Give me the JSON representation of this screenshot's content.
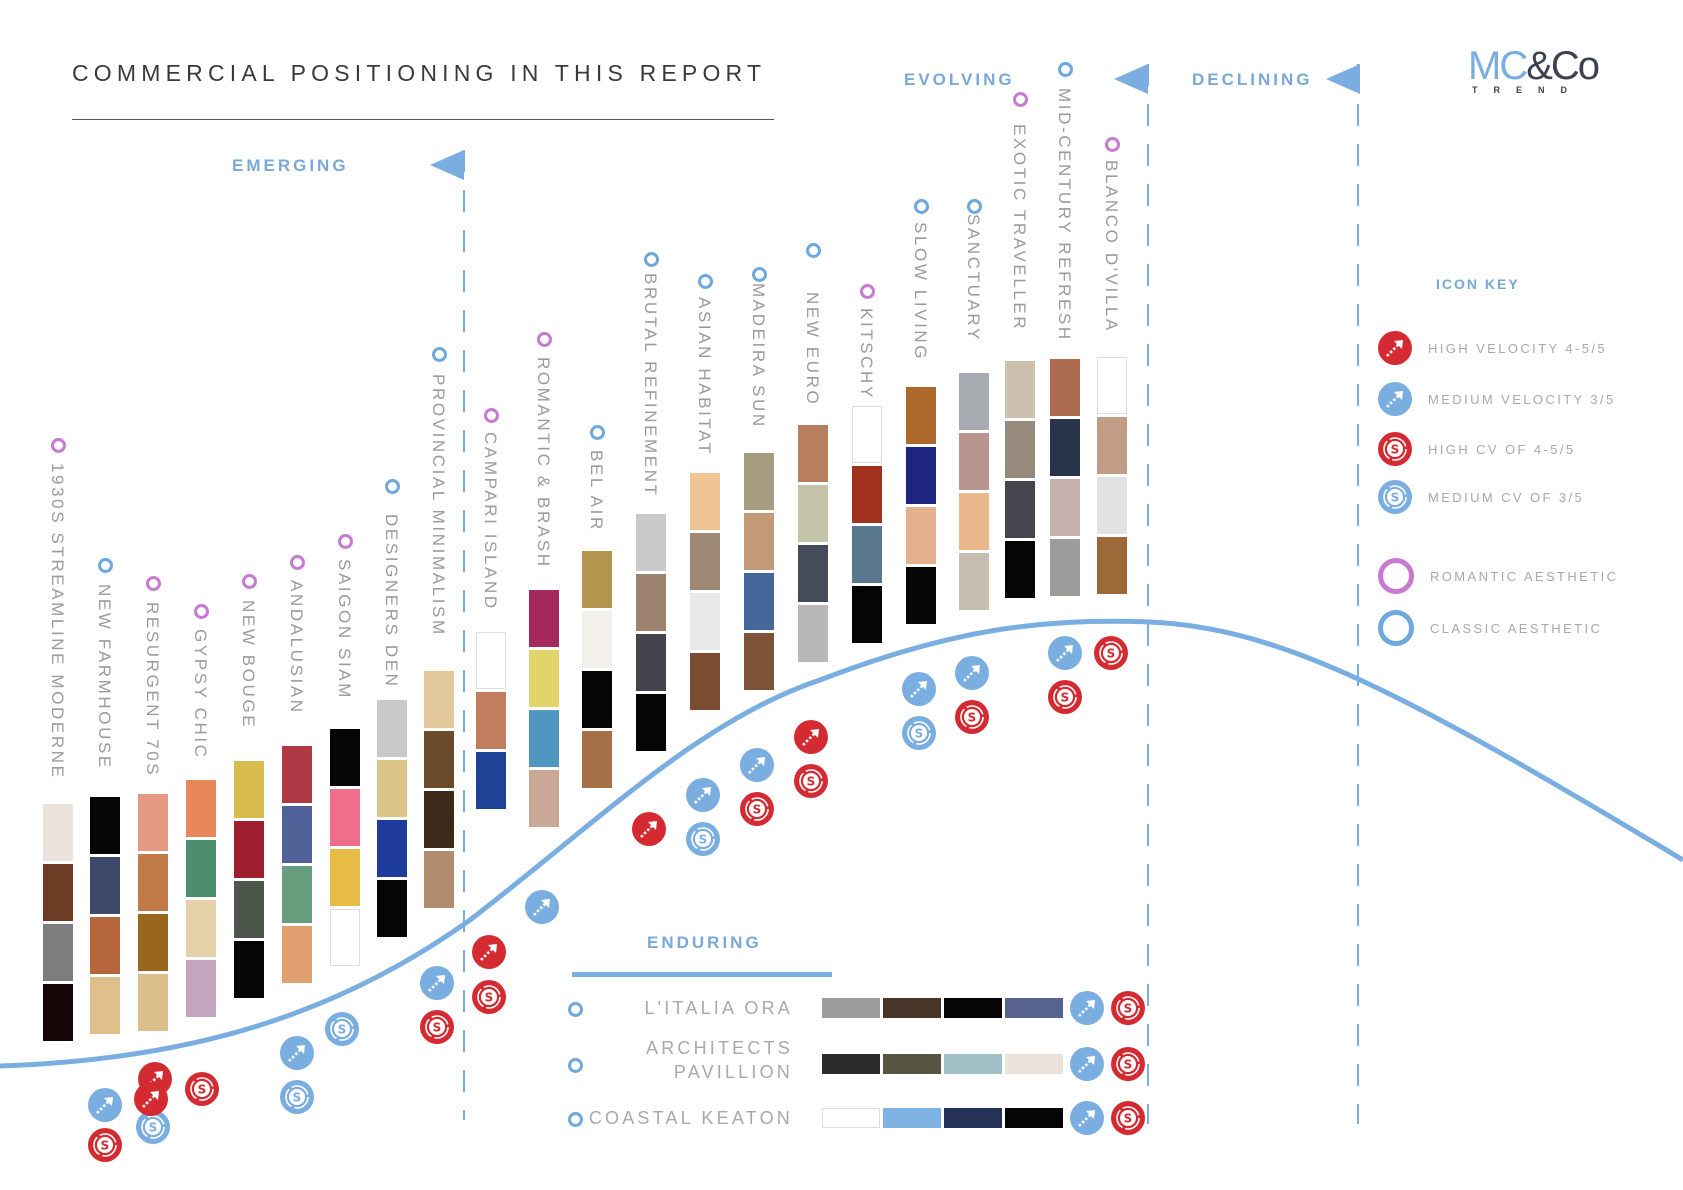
{
  "title": "COMMERCIAL POSITIONING IN THIS REPORT",
  "logo": {
    "main_a": "MC",
    "main_b": "&Co",
    "sub": "TREND"
  },
  "colors": {
    "accent_blue": "#7aaee0",
    "romantic": "#c77ad2",
    "classic": "#6ea8dc",
    "high_red": "#d42a32",
    "text_gray": "#9a9aa0"
  },
  "stages": {
    "emerging": "EMERGING",
    "evolving": "EVOLVING",
    "declining": "DECLINING",
    "enduring": "ENDURING"
  },
  "icon_key": {
    "title": "ICON KEY",
    "items": [
      {
        "icon": "high-velocity-icon",
        "label": "HIGH VELOCITY 4-5/5"
      },
      {
        "icon": "medium-velocity-icon",
        "label": "MEDIUM VELOCITY 3/5"
      },
      {
        "icon": "high-cv-icon",
        "label": "HIGH CV OF 4-5/5"
      },
      {
        "icon": "medium-cv-icon",
        "label": "MEDIUM CV OF 3/5"
      },
      {
        "icon": "romantic-ring-icon",
        "label": "ROMANTIC AESTHETIC"
      },
      {
        "icon": "classic-ring-icon",
        "label": "CLASSIC AESTHETIC"
      }
    ]
  },
  "trends": [
    {
      "name": "1930S STREAMLINE MODERNE",
      "aesthetic": "romantic",
      "swatches": [
        "#ebe3dc",
        "#6e3c24",
        "#7d7d7d",
        "#170507"
      ],
      "velocity": "medium",
      "cv": "high"
    },
    {
      "name": "NEW FARMHOUSE",
      "aesthetic": "classic",
      "swatches": [
        "#050505",
        "#3f4a6b",
        "#b5663a",
        "#dfbf8a"
      ],
      "velocity": "high",
      "cv": "medium"
    },
    {
      "name": "RESURGENT 70S",
      "aesthetic": "romantic",
      "swatches": [
        "#e69a85",
        "#c27a48",
        "#99661d",
        "#dcbf8a"
      ],
      "velocity": "high",
      "cv": "high"
    },
    {
      "name": "GYPSY CHIC",
      "aesthetic": "romantic",
      "swatches": [
        "#e8885a",
        "#4f8d6f",
        "#e6d2aa",
        "#c4a5c0"
      ],
      "velocity": null,
      "cv": null
    },
    {
      "name": "NEW BOUGE",
      "aesthetic": "romantic",
      "swatches": [
        "#d8bc4e",
        "#9e1d2e",
        "#4c5549",
        "#050505"
      ],
      "velocity": null,
      "cv": null
    },
    {
      "name": "ANDALUSIAN",
      "aesthetic": "romantic",
      "swatches": [
        "#ad3a45",
        "#516299",
        "#689e7e",
        "#e0a070"
      ],
      "velocity": "medium",
      "cv": "medium"
    },
    {
      "name": "SAIGON SIAM",
      "aesthetic": "romantic",
      "swatches": [
        "#050505",
        "#f06e8a",
        "#e8bb44",
        "#ffffff"
      ],
      "velocity": null,
      "cv": "medium"
    },
    {
      "name": "DESIGNERS DEN",
      "aesthetic": "classic",
      "swatches": [
        "#c8c8c8",
        "#dcc486",
        "#1e3a9a",
        "#050505"
      ],
      "velocity": null,
      "cv": null
    },
    {
      "name": "PROVINCIAL MINIMALISM",
      "aesthetic": "classic",
      "swatches": [
        "#e2c89c",
        "#6b4a2a",
        "#3d2a1a",
        "#b08c6c"
      ],
      "velocity": "medium",
      "cv": "high"
    },
    {
      "name": "CAMPARI ISLAND",
      "aesthetic": "romantic",
      "swatches": [
        "#ffffff",
        "#c07e5e",
        "#1f4196"
      ],
      "velocity": "high",
      "cv": "high"
    },
    {
      "name": "ROMANTIC & BRASH",
      "aesthetic": "romantic",
      "swatches": [
        "#a6295e",
        "#e2d468",
        "#5196c0",
        "#c9a896"
      ],
      "velocity": "medium",
      "cv": null
    },
    {
      "name": "BEL AIR",
      "aesthetic": "classic",
      "swatches": [
        "#b4954e",
        "#f3efeb",
        "#050505",
        "#a67148"
      ],
      "velocity": null,
      "cv": null
    },
    {
      "name": "BRUTAL REFINEMENT",
      "aesthetic": "classic",
      "swatches": [
        "#c9c9c9",
        "#9e8270",
        "#45434e",
        "#050505"
      ],
      "velocity": "high",
      "cv": null
    },
    {
      "name": "ASIAN HABITAT",
      "aesthetic": "classic",
      "swatches": [
        "#efc596",
        "#9e8876",
        "#e8e8ea",
        "#7a4c32"
      ],
      "velocity": "medium",
      "cv": "medium"
    },
    {
      "name": "MADEIRA SUN",
      "aesthetic": "classic",
      "swatches": [
        "#a69c80",
        "#c29a78",
        "#44689a",
        "#7c5238"
      ],
      "velocity": "medium",
      "cv": "high"
    },
    {
      "name": "NEW EURO",
      "aesthetic": "classic",
      "swatches": [
        "#b77e60",
        "#c4c4aa",
        "#434c58",
        "#b8b8ba"
      ],
      "velocity": "high",
      "cv": "high"
    },
    {
      "name": "KITSCHY",
      "aesthetic": "romantic",
      "swatches": [
        "#ffffff",
        "#a3311f",
        "#59778e",
        "#050505"
      ],
      "velocity": null,
      "cv": null
    },
    {
      "name": "SLOW LIVING",
      "aesthetic": "classic",
      "swatches": [
        "#b0692c",
        "#1d2580",
        "#e3b18e",
        "#050505"
      ],
      "velocity": "medium",
      "cv": "medium"
    },
    {
      "name": "SANCTUARY",
      "aesthetic": "classic",
      "swatches": [
        "#a8acb2",
        "#b8968f",
        "#ebb78d",
        "#c6beb0"
      ],
      "velocity": "medium",
      "cv": "high"
    },
    {
      "name": "EXOTIC TRAVELLER",
      "aesthetic": "romantic",
      "swatches": [
        "#cdc0ae",
        "#978a7c",
        "#46444f",
        "#050505"
      ],
      "velocity": null,
      "cv": null
    },
    {
      "name": "MID-CENTURY REFRESH",
      "aesthetic": "classic",
      "swatches": [
        "#ab6c50",
        "#283449",
        "#c7b2ae",
        "#9e9c9a"
      ],
      "velocity": "medium",
      "cv": "high"
    },
    {
      "name": "BLANCO D'VILLA",
      "aesthetic": "romantic",
      "swatches": [
        "#ffffff",
        "#c29d86",
        "#e2e2e4",
        "#9d6938"
      ],
      "velocity": null,
      "cv": "high"
    }
  ],
  "enduring": [
    {
      "name": "L'ITALIA ORA",
      "aesthetic": "classic",
      "swatches": [
        "#9c9b9b",
        "#47352a",
        "#050505",
        "#56638c"
      ],
      "velocity": "medium",
      "cv": "high"
    },
    {
      "name": "ARCHITECTS PAVILLION",
      "aesthetic": "classic",
      "swatches": [
        "#2c2c2c",
        "#575441",
        "#a0bfc7",
        "#ece2dc"
      ],
      "velocity": "medium",
      "cv": "high"
    },
    {
      "name": "COASTAL KEATON",
      "aesthetic": "classic",
      "swatches": [
        "#ffffff",
        "#7fb3e3",
        "#25325a",
        "#050505"
      ],
      "velocity": "medium",
      "cv": "high"
    }
  ]
}
